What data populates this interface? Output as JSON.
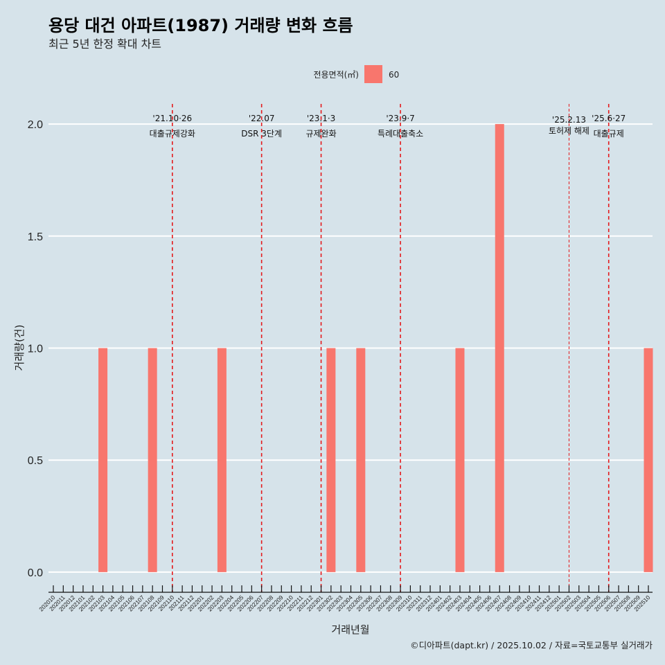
{
  "title": "용당 대건 아파트(1987) 거래량 변화 흐름",
  "subtitle": "최근 5년 한정 확대 차트",
  "caption": "©디아파트(dapt.kr) / 2025.10.02 / 자료=국토교통부 실거래가",
  "legend": {
    "title": "전용면적(㎡)",
    "entries": [
      {
        "label": "60",
        "color": "#f8766d"
      }
    ]
  },
  "chart_data": {
    "type": "bar",
    "categories": [
      "202010",
      "202011",
      "202012",
      "202101",
      "202102",
      "202103",
      "202104",
      "202105",
      "202106",
      "202107",
      "202108",
      "202109",
      "202110",
      "202111",
      "202112",
      "202201",
      "202202",
      "202203",
      "202204",
      "202205",
      "202206",
      "202207",
      "202208",
      "202209",
      "202210",
      "202211",
      "202212",
      "202301",
      "202302",
      "202303",
      "202304",
      "202305",
      "202306",
      "202307",
      "202308",
      "202309",
      "202310",
      "202311",
      "202312",
      "202401",
      "202402",
      "202403",
      "202404",
      "202405",
      "202406",
      "202407",
      "202408",
      "202409",
      "202410",
      "202411",
      "202412",
      "202501",
      "202502",
      "202503",
      "202504",
      "202505",
      "202506",
      "202507",
      "202508",
      "202509",
      "202510"
    ],
    "series": [
      {
        "name": "60",
        "color": "#f8766d",
        "values": [
          0,
          0,
          0,
          0,
          0,
          1,
          0,
          0,
          0,
          0,
          1,
          0,
          0,
          0,
          0,
          0,
          0,
          1,
          0,
          0,
          0,
          0,
          0,
          0,
          0,
          0,
          0,
          0,
          1,
          0,
          0,
          1,
          0,
          0,
          0,
          0,
          0,
          0,
          0,
          0,
          0,
          1,
          0,
          0,
          0,
          2,
          0,
          0,
          0,
          0,
          0,
          0,
          0,
          0,
          0,
          0,
          0,
          0,
          0,
          0,
          1
        ]
      }
    ],
    "ylim": [
      -0.09,
      2.09
    ],
    "yticks": [
      0.0,
      0.5,
      1.0,
      1.5,
      2.0
    ],
    "ytick_labels": [
      "0.0",
      "0.5",
      "1.0",
      "1.5",
      "2.0"
    ],
    "xlabel": "거래년월",
    "ylabel": "거래량(건)",
    "annotations": [
      {
        "x": "202110",
        "line1": "'21.10·26",
        "line2": "대출규제강화",
        "style": "thick"
      },
      {
        "x": "202207",
        "line1": "'22.07",
        "line2": "DSR 3단계",
        "style": "thick"
      },
      {
        "x": "202301",
        "line1": "'23.1·3",
        "line2": "규제완화",
        "style": "thick"
      },
      {
        "x": "202309",
        "line1": "'23.9·7",
        "line2": "특례대출축소",
        "style": "thick"
      },
      {
        "x": "202502",
        "line1": "'25.2.13",
        "line2": "토허제 해제",
        "style": "thin"
      },
      {
        "x": "202506",
        "line1": "'25.6·27",
        "line2": "대출규제",
        "style": "thick"
      }
    ]
  }
}
